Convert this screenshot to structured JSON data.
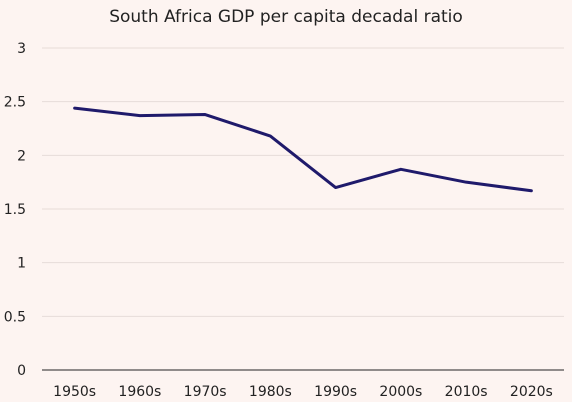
{
  "chart_data": {
    "type": "line",
    "title": "South Africa GDP per capita decadal ratio",
    "xlabel": "",
    "ylabel": "",
    "categories": [
      "1950s",
      "1960s",
      "1970s",
      "1980s",
      "1990s",
      "2000s",
      "2010s",
      "2020s"
    ],
    "series": [
      {
        "values": [
          2.44,
          2.37,
          2.38,
          2.18,
          1.7,
          1.87,
          1.75,
          1.67
        ],
        "color": "#1f1a6b"
      }
    ],
    "ylim": [
      0,
      3
    ],
    "yticks": [
      "0",
      "0.5",
      "1",
      "1.5",
      "2",
      "2.5",
      "3"
    ],
    "grid": true,
    "legend": "none",
    "colors": {
      "background": "#fdf4f1",
      "grid": "#e6dcd8",
      "axis": "#222222"
    }
  }
}
